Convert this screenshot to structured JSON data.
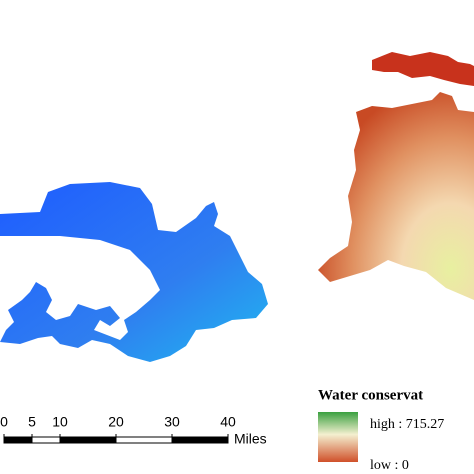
{
  "scale_bar": {
    "ticks": [
      0,
      5,
      10,
      20,
      30,
      40
    ],
    "unit": "Miles"
  },
  "legend": {
    "title": "Water conservat",
    "high": "high : 715.27",
    "low": "low : 0"
  }
}
